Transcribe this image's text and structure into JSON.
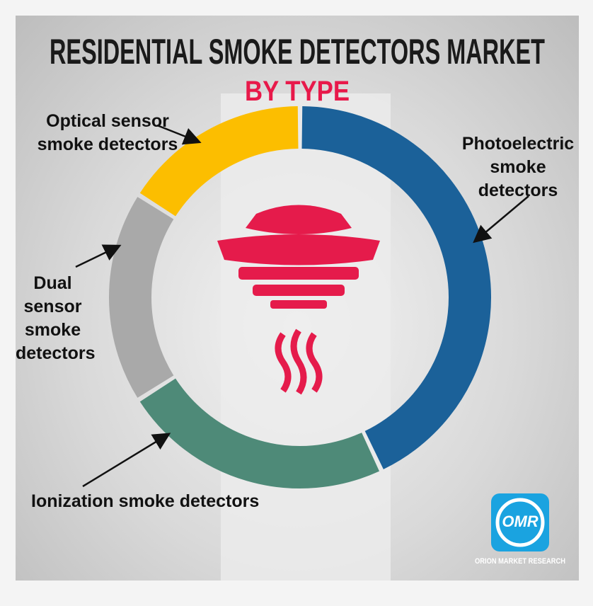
{
  "chart_data": {
    "type": "donut",
    "title": "RESIDENTIAL SMOKE DETECTORS MARKET",
    "subtitle": "BY TYPE",
    "categories": [
      "Photoelectric smoke detectors",
      "Ionization smoke detectors",
      "Dual sensor smoke detectors",
      "Optical sensor smoke detectors"
    ],
    "values": [
      43,
      23,
      18,
      16
    ],
    "colors": [
      "#1b6199",
      "#4e8a78",
      "#a9a9a9",
      "#fcbe00"
    ]
  },
  "logo": {
    "mark": "OMR",
    "name": "ORION MARKET RESEARCH"
  }
}
